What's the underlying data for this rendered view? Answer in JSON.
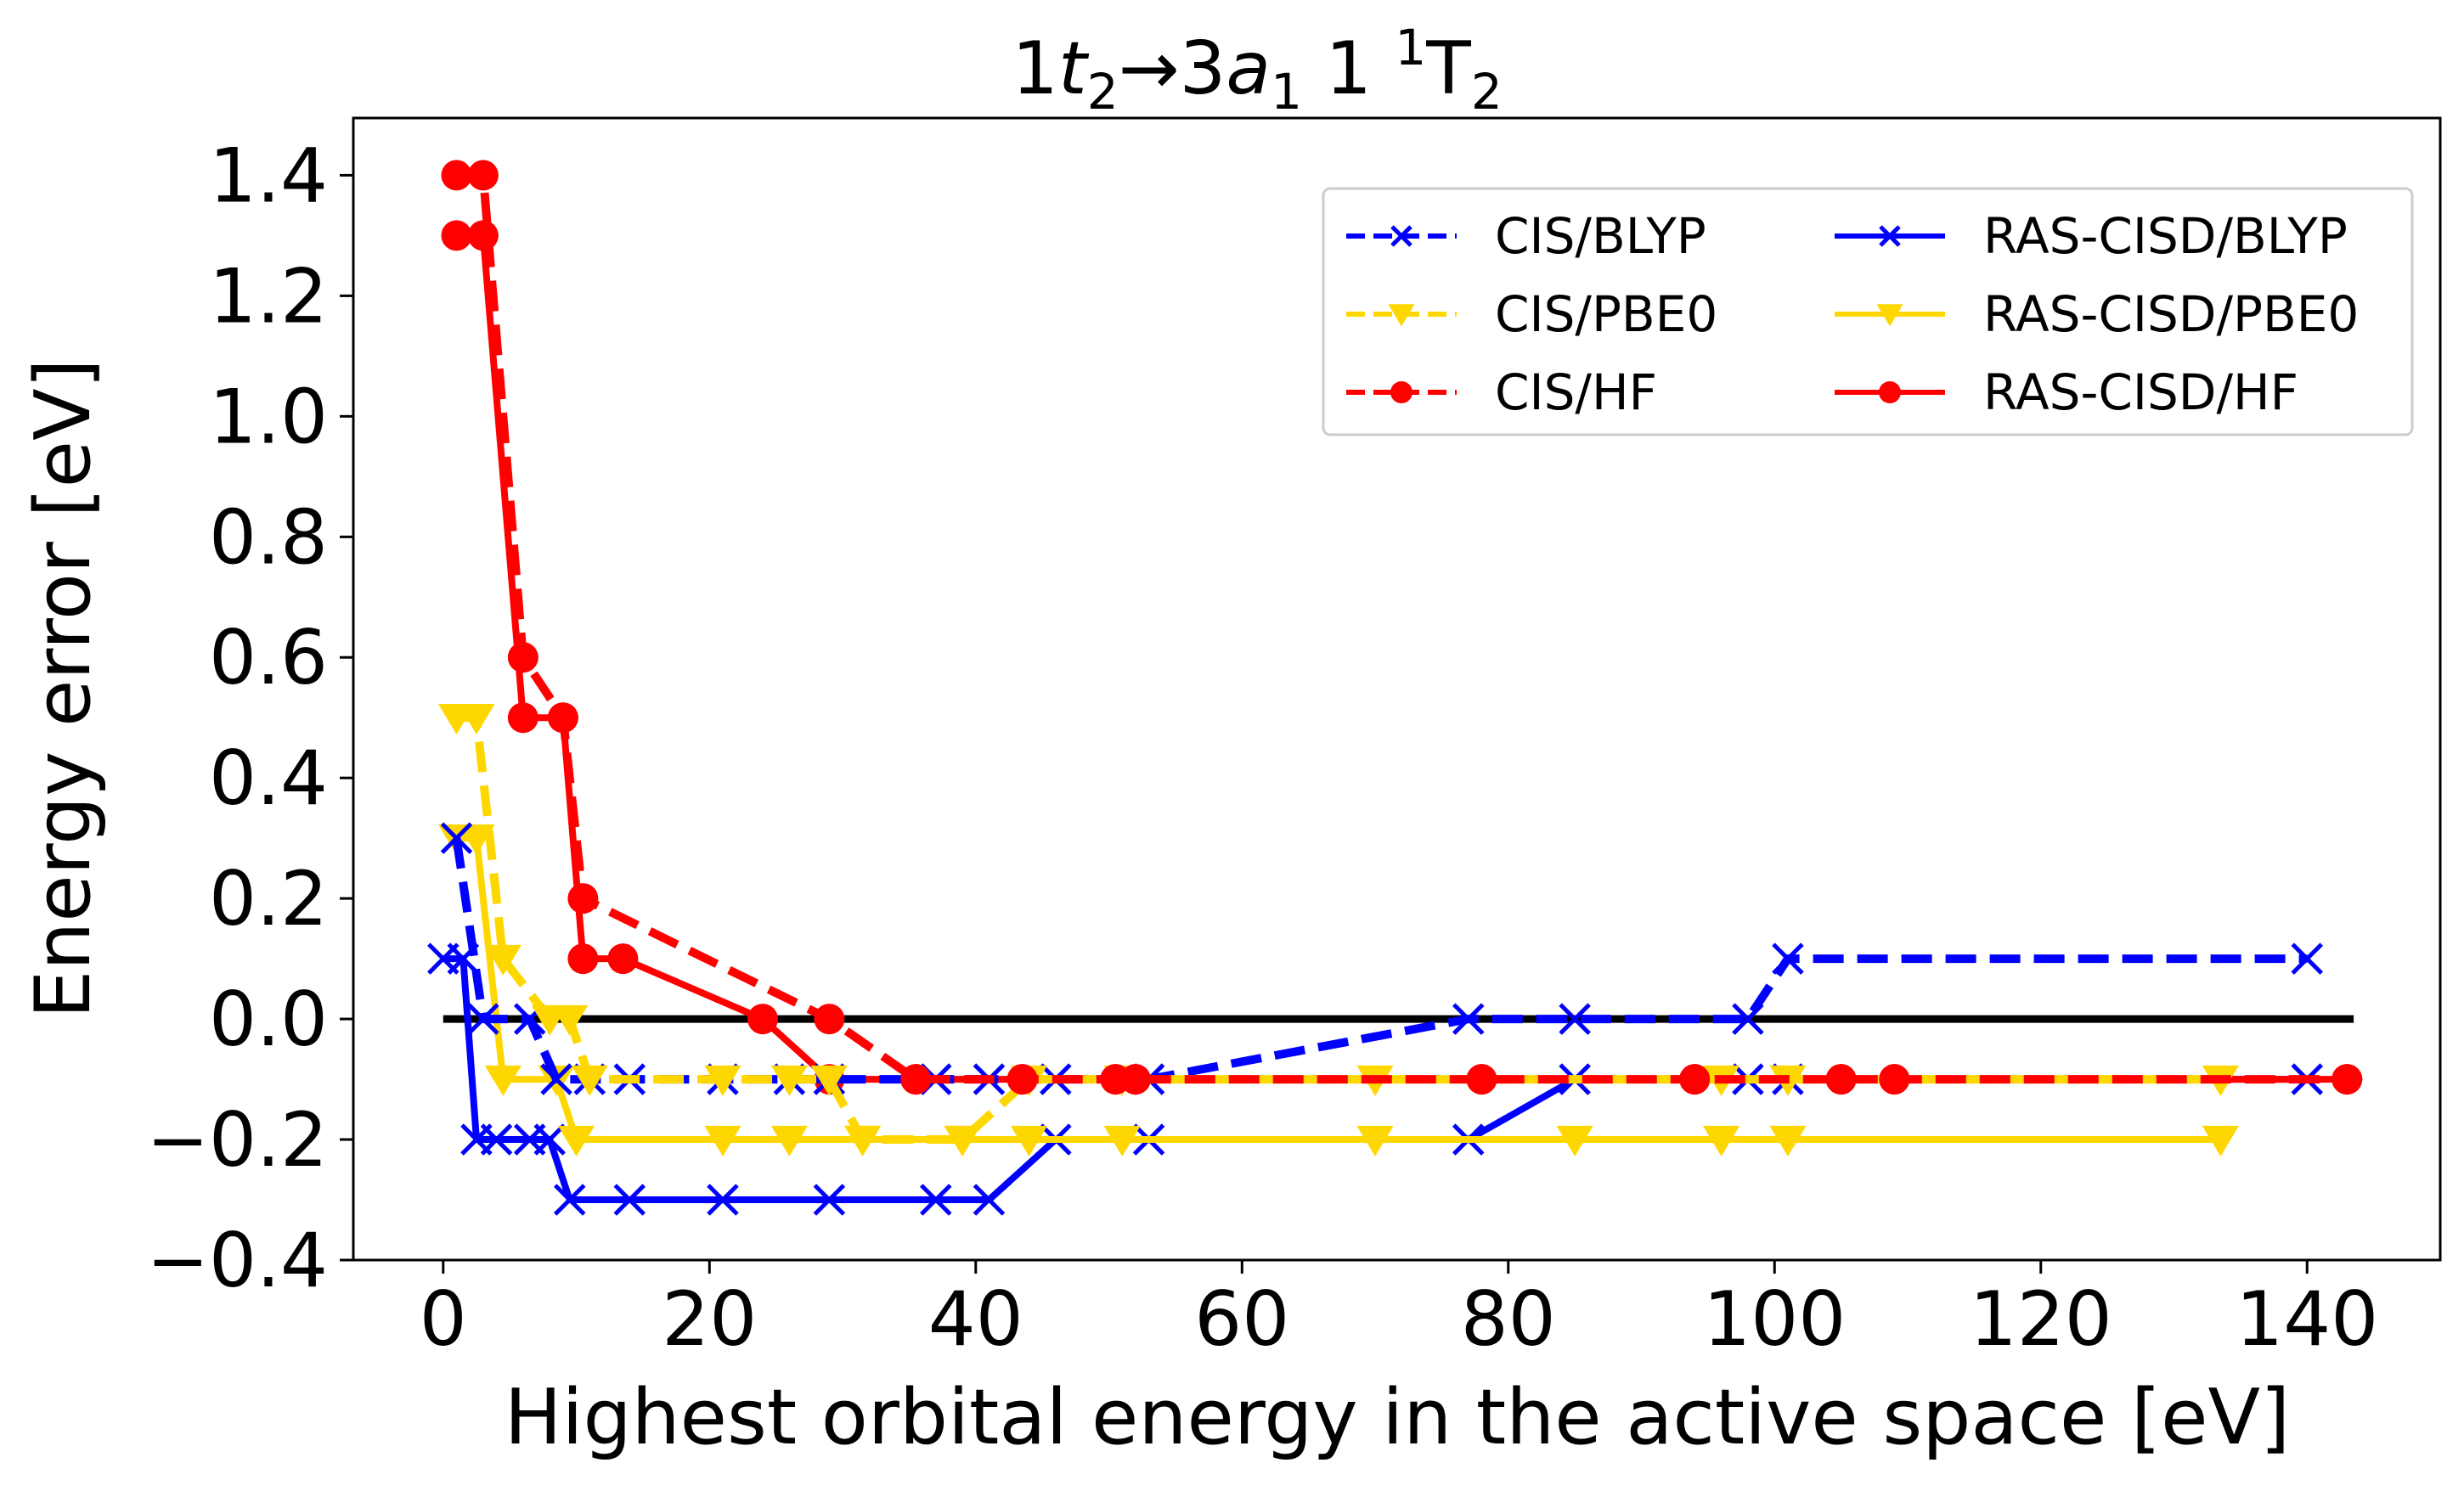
{
  "chart_data": {
    "type": "line",
    "title_parts": {
      "a": "1",
      "b": "t",
      "c": "2",
      "arrow": "→",
      "d": "3",
      "e": "a",
      "f": "1",
      "g": " 1 ",
      "h": "1",
      "i": "T",
      "j": "2"
    },
    "xlabel": "Highest orbital energy in the active space [eV]",
    "ylabel": "Energy error [eV]",
    "xlim": [
      -6.75,
      150
    ],
    "ylim": [
      -0.4,
      1.495
    ],
    "xticks": [
      0,
      20,
      40,
      60,
      80,
      100,
      120,
      140
    ],
    "xtick_labels": [
      "0",
      "20",
      "40",
      "60",
      "80",
      "100",
      "120",
      "140"
    ],
    "yticks": [
      -0.4,
      -0.2,
      0.0,
      0.2,
      0.4,
      0.6,
      0.8,
      1.0,
      1.2,
      1.4
    ],
    "ytick_labels": [
      "−0.4",
      "−0.2",
      "0.0",
      "0.2",
      "0.4",
      "0.6",
      "0.8",
      "1.0",
      "1.2",
      "1.4"
    ],
    "grid": false,
    "legend_position": "top-right",
    "reference_line": {
      "y": 0.0,
      "x": [
        0,
        143.5
      ],
      "color": "#000000"
    },
    "series": [
      {
        "name": "CIS/BLYP",
        "color": "#0000ff",
        "dashed": true,
        "marker": "x",
        "points": [
          [
            1,
            0.3
          ],
          [
            3,
            0.0
          ],
          [
            6.5,
            0.0
          ],
          [
            8.5,
            -0.1
          ],
          [
            11,
            -0.1
          ],
          [
            14,
            -0.1
          ],
          [
            21,
            -0.1
          ],
          [
            26,
            -0.1
          ],
          [
            29,
            -0.1
          ],
          [
            37,
            -0.1
          ],
          [
            41,
            -0.1
          ],
          [
            46,
            -0.1
          ],
          [
            53,
            -0.1
          ],
          [
            77,
            0.0
          ],
          [
            85,
            0.0
          ],
          [
            98,
            0.0
          ],
          [
            101,
            0.1
          ],
          [
            140,
            0.1
          ]
        ]
      },
      {
        "name": "CIS/PBE0",
        "color": "#ffd700",
        "dashed": true,
        "marker": "v",
        "points": [
          [
            1,
            0.5
          ],
          [
            2.5,
            0.5
          ],
          [
            4.5,
            0.1
          ],
          [
            8,
            0.0
          ],
          [
            9.5,
            0.0
          ],
          [
            11,
            -0.1
          ],
          [
            21,
            -0.1
          ],
          [
            26,
            -0.1
          ],
          [
            29,
            -0.1
          ],
          [
            31.5,
            -0.2
          ],
          [
            39,
            -0.2
          ],
          [
            44,
            -0.1
          ],
          [
            51,
            -0.1
          ],
          [
            70,
            -0.1
          ],
          [
            96,
            -0.1
          ],
          [
            101,
            -0.1
          ],
          [
            133.5,
            -0.1
          ]
        ]
      },
      {
        "name": "CIS/HF",
        "color": "#ff0000",
        "dashed": true,
        "marker": "o",
        "points": [
          [
            1,
            1.4
          ],
          [
            3,
            1.4
          ],
          [
            6,
            0.6
          ],
          [
            9,
            0.5
          ],
          [
            10.5,
            0.2
          ],
          [
            29,
            0.0
          ],
          [
            35.5,
            -0.1
          ],
          [
            43.5,
            -0.1
          ],
          [
            50.5,
            -0.1
          ],
          [
            52,
            -0.1
          ],
          [
            78,
            -0.1
          ],
          [
            94,
            -0.1
          ],
          [
            105,
            -0.1
          ],
          [
            109,
            -0.1
          ],
          [
            143,
            -0.1
          ]
        ]
      },
      {
        "name": "RAS-CISD/BLYP",
        "color": "#0000ff",
        "dashed": false,
        "marker": "x",
        "points": [
          [
            0,
            0.1
          ],
          [
            1.5,
            0.1
          ],
          [
            2.5,
            -0.2
          ],
          [
            4,
            -0.2
          ],
          [
            6.5,
            -0.2
          ],
          [
            8,
            -0.2
          ],
          [
            9.5,
            -0.3
          ],
          [
            14,
            -0.3
          ],
          [
            21,
            -0.3
          ],
          [
            29,
            -0.3
          ],
          [
            37,
            -0.3
          ],
          [
            41,
            -0.3
          ],
          [
            46,
            -0.2
          ],
          [
            53,
            -0.2
          ],
          [
            77,
            -0.2
          ],
          [
            85,
            -0.1
          ],
          [
            98,
            -0.1
          ],
          [
            101,
            -0.1
          ],
          [
            140,
            -0.1
          ]
        ]
      },
      {
        "name": "RAS-CISD/PBE0",
        "color": "#ffd700",
        "dashed": false,
        "marker": "v",
        "points": [
          [
            1,
            0.3
          ],
          [
            2.5,
            0.3
          ],
          [
            4.5,
            -0.1
          ],
          [
            8.5,
            -0.1
          ],
          [
            10,
            -0.2
          ],
          [
            21,
            -0.2
          ],
          [
            26,
            -0.2
          ],
          [
            31.5,
            -0.2
          ],
          [
            39,
            -0.2
          ],
          [
            44,
            -0.2
          ],
          [
            51,
            -0.2
          ],
          [
            70,
            -0.2
          ],
          [
            85,
            -0.2
          ],
          [
            96,
            -0.2
          ],
          [
            101,
            -0.2
          ],
          [
            133.5,
            -0.2
          ]
        ]
      },
      {
        "name": "RAS-CISD/HF",
        "color": "#ff0000",
        "dashed": false,
        "marker": "o",
        "points": [
          [
            1,
            1.3
          ],
          [
            3,
            1.3
          ],
          [
            6,
            0.5
          ],
          [
            9,
            0.5
          ],
          [
            10.5,
            0.1
          ],
          [
            13.5,
            0.1
          ],
          [
            24,
            0.0
          ],
          [
            29,
            -0.1
          ],
          [
            35.5,
            -0.1
          ],
          [
            43.5,
            -0.1
          ],
          [
            50.5,
            -0.1
          ],
          [
            52,
            -0.1
          ],
          [
            78,
            -0.1
          ],
          [
            94,
            -0.1
          ],
          [
            105,
            -0.1
          ],
          [
            109,
            -0.1
          ],
          [
            143,
            -0.1
          ]
        ]
      }
    ]
  }
}
